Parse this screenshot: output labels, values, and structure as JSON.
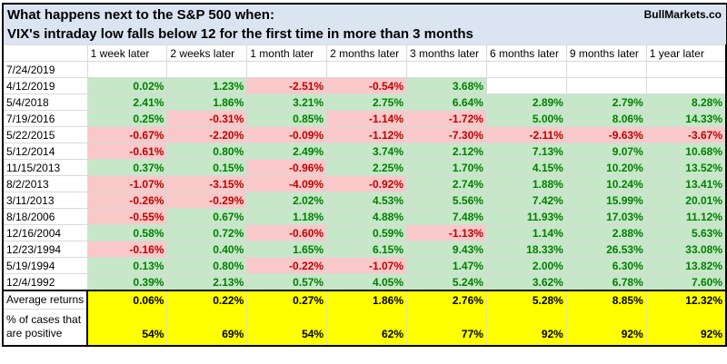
{
  "watermark": "BullMarkets.co",
  "title": {
    "line1": "What happens next to the S&P 500 when:",
    "line2": "VIX's intraday low falls below 12 for the first time in more than 3 months"
  },
  "chart_data": {
    "type": "table",
    "columns": [
      "1 week later",
      "2 weeks later",
      "1 month later",
      "2 months later",
      "3 months later",
      "6 months later",
      "9 months later",
      "1 year later"
    ],
    "rows": [
      {
        "date": "7/24/2019",
        "values": [
          "",
          "",
          "",
          "",
          "",
          "",
          "",
          ""
        ]
      },
      {
        "date": "4/12/2019",
        "values": [
          "0.02%",
          "1.23%",
          "-2.51%",
          "-0.54%",
          "3.68%",
          "",
          "",
          ""
        ]
      },
      {
        "date": "5/4/2018",
        "values": [
          "2.41%",
          "1.86%",
          "3.21%",
          "2.75%",
          "6.64%",
          "2.89%",
          "2.79%",
          "8.28%"
        ]
      },
      {
        "date": "7/19/2016",
        "values": [
          "0.25%",
          "-0.31%",
          "0.85%",
          "-1.14%",
          "-1.72%",
          "5.00%",
          "8.06%",
          "14.33%"
        ]
      },
      {
        "date": "5/22/2015",
        "values": [
          "-0.67%",
          "-2.20%",
          "-0.09%",
          "-1.12%",
          "-7.30%",
          "-2.11%",
          "-9.63%",
          "-3.67%"
        ]
      },
      {
        "date": "5/12/2014",
        "values": [
          "-0.61%",
          "0.80%",
          "2.49%",
          "3.74%",
          "2.12%",
          "7.13%",
          "9.07%",
          "10.68%"
        ]
      },
      {
        "date": "11/15/2013",
        "values": [
          "0.37%",
          "0.15%",
          "-0.96%",
          "2.25%",
          "1.70%",
          "4.15%",
          "10.20%",
          "13.52%"
        ]
      },
      {
        "date": "8/2/2013",
        "values": [
          "-1.07%",
          "-3.15%",
          "-4.09%",
          "-0.92%",
          "2.74%",
          "1.88%",
          "10.24%",
          "13.41%"
        ]
      },
      {
        "date": "3/11/2013",
        "values": [
          "-0.26%",
          "-0.29%",
          "2.02%",
          "4.53%",
          "5.56%",
          "7.42%",
          "15.99%",
          "20.01%"
        ]
      },
      {
        "date": "8/18/2006",
        "values": [
          "-0.55%",
          "0.67%",
          "1.18%",
          "4.88%",
          "7.48%",
          "11.93%",
          "17.03%",
          "11.12%"
        ]
      },
      {
        "date": "12/16/2004",
        "values": [
          "0.58%",
          "0.72%",
          "-0.60%",
          "0.59%",
          "-1.13%",
          "1.14%",
          "2.88%",
          "5.63%"
        ]
      },
      {
        "date": "12/23/1994",
        "values": [
          "-0.16%",
          "0.40%",
          "1.65%",
          "6.15%",
          "9.43%",
          "18.33%",
          "26.53%",
          "33.08%"
        ]
      },
      {
        "date": "5/19/1994",
        "values": [
          "0.13%",
          "0.80%",
          "-0.22%",
          "-1.07%",
          "1.47%",
          "2.00%",
          "6.30%",
          "13.82%"
        ]
      },
      {
        "date": "12/4/1992",
        "values": [
          "0.39%",
          "2.13%",
          "0.57%",
          "4.05%",
          "5.24%",
          "3.62%",
          "6.78%",
          "7.60%"
        ]
      }
    ],
    "summary": {
      "avg_label": "Average returns",
      "avg_values": [
        "0.06%",
        "0.22%",
        "0.27%",
        "1.86%",
        "2.76%",
        "5.28%",
        "8.85%",
        "12.32%"
      ],
      "pct_label_line1": "% of cases that",
      "pct_label_line2": "are positive",
      "pct_values": [
        "54%",
        "69%",
        "54%",
        "62%",
        "77%",
        "92%",
        "92%",
        "92%"
      ]
    }
  },
  "colors": {
    "positive_bg": "#c6e7c8",
    "positive_text": "#008000",
    "negative_bg": "#f8c9c8",
    "negative_text": "#c00000",
    "title_bg": "#dbe5f1",
    "summary_bg": "#ffff00",
    "gridline": "#d9d9d9"
  }
}
